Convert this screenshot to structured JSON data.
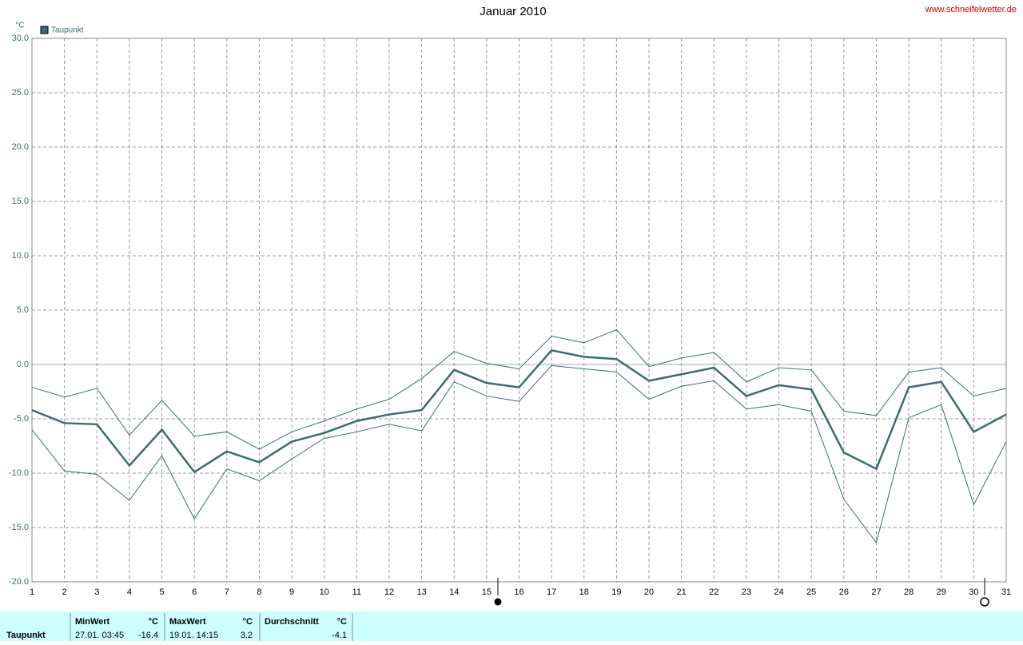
{
  "chart_data": {
    "type": "line",
    "title": "Januar 2010",
    "source": "www.schneifelwetter.de",
    "y_unit": "°C",
    "x": [
      1,
      2,
      3,
      4,
      5,
      6,
      7,
      8,
      9,
      10,
      11,
      12,
      13,
      14,
      15,
      16,
      17,
      18,
      19,
      20,
      21,
      22,
      23,
      24,
      25,
      26,
      27,
      28,
      29,
      30,
      31
    ],
    "xlim": [
      1,
      31
    ],
    "ylim": [
      -20,
      30
    ],
    "yticks": [
      {
        "value": -20,
        "label": "-20.0"
      },
      {
        "value": -15,
        "label": "-15.0"
      },
      {
        "value": -10,
        "label": "-10.0"
      },
      {
        "value": -5,
        "label": "-5.0"
      },
      {
        "value": 0,
        "label": "0.0"
      },
      {
        "value": 5,
        "label": "5.0"
      },
      {
        "value": 10,
        "label": "10.0"
      },
      {
        "value": 15,
        "label": "15.0"
      },
      {
        "value": 20,
        "label": "20.0"
      },
      {
        "value": 25,
        "label": "25.0"
      },
      {
        "value": 30,
        "label": "30.0"
      }
    ],
    "grid": true,
    "legend": "top-left",
    "series": [
      {
        "name": "Taupunkt",
        "color": "#3a6e6e",
        "values": [
          -4.2,
          -5.4,
          -5.5,
          -9.3,
          -6.0,
          -9.9,
          -8.0,
          -9.0,
          -7.1,
          -6.3,
          -5.2,
          -4.6,
          -4.2,
          -0.5,
          -1.7,
          -2.1,
          1.3,
          0.7,
          0.5,
          -1.5,
          -0.9,
          -0.3,
          -2.9,
          -1.9,
          -2.3,
          -8.1,
          -9.6,
          -2.1,
          -1.6,
          -6.2,
          -4.6
        ]
      },
      {
        "color": "#3a6e6e",
        "values": [
          -2.1,
          -3.0,
          -2.2,
          -6.5,
          -3.3,
          -6.6,
          -6.2,
          -7.8,
          -6.2,
          -5.2,
          -4.1,
          -3.2,
          -1.3,
          1.2,
          0.1,
          -0.4,
          2.6,
          2.0,
          3.2,
          -0.2,
          0.6,
          1.1,
          -1.6,
          -0.3,
          -0.5,
          -4.3,
          -4.7,
          -0.7,
          -0.3,
          -2.9,
          -2.2
        ]
      },
      {
        "color": "#3a6e6e",
        "values": [
          -6.0,
          -9.8,
          -10.1,
          -12.5,
          -8.4,
          -14.2,
          -9.6,
          -10.7,
          -8.7,
          -6.8,
          -6.2,
          -5.5,
          -6.1,
          -1.6,
          -2.9,
          -3.4,
          -0.1,
          -0.4,
          -0.7,
          -3.2,
          -2.0,
          -1.5,
          -4.1,
          -3.7,
          -4.3,
          -12.4,
          -16.4,
          -4.9,
          -3.7,
          -12.9,
          -7.1
        ]
      }
    ]
  },
  "footer": {
    "label": "Taupunkt",
    "min": {
      "title": "MinWert",
      "unit": "°C",
      "time": "27.01.  03:45",
      "value": "-16.4"
    },
    "max": {
      "title": "MaxWert",
      "unit": "°C",
      "time": "19.01.  14:15",
      "value": "3.2"
    },
    "avg": {
      "title": "Durchschnitt",
      "unit": "°C",
      "value": "-4.1"
    }
  }
}
